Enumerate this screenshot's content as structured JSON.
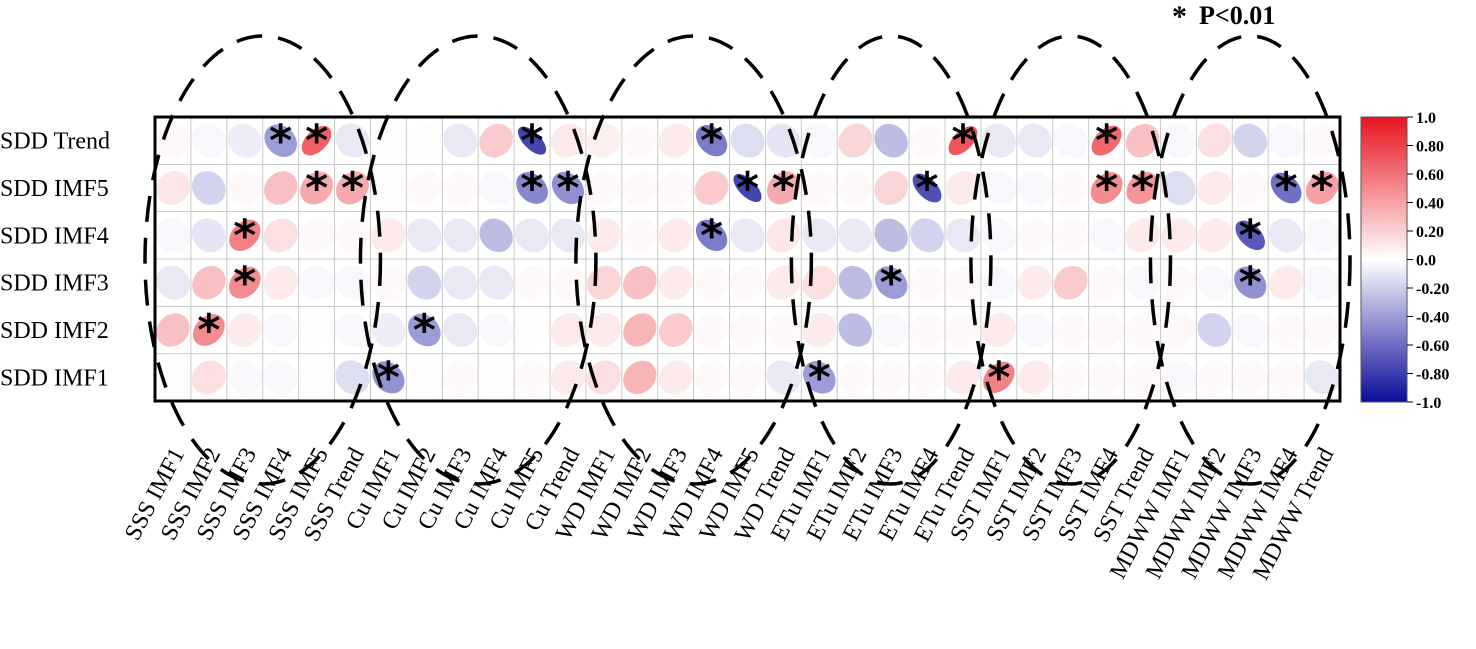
{
  "legend_note": {
    "symbol": "*",
    "text": "P<0.01"
  },
  "chart_data": {
    "type": "heatmap",
    "glyph": "ellipse",
    "rows": [
      "SDD Trend",
      "SDD IMF5",
      "SDD IMF4",
      "SDD IMF3",
      "SDD IMF2",
      "SDD IMF1"
    ],
    "columns": [
      "SSS IMF1",
      "SSS IMF2",
      "SSS IMF3",
      "SSS IMF4",
      "SSS IMF5",
      "SSS Trend",
      "Cu IMF1",
      "Cu IMF2",
      "Cu IMF3",
      "Cu IMF4",
      "Cu IMF5",
      "Cu Trend",
      "WD IMF1",
      "WD IMF2",
      "WD IMF3",
      "WD IMF4",
      "WD IMF5",
      "WD Trend",
      "ETu IMF1",
      "ETu IMF2",
      "ETu IMF3",
      "ETu IMF4",
      "ETu Trend",
      "SST IMF1",
      "SST IMF2",
      "SST IMF3",
      "SST IMF4",
      "SST Trend",
      "MDWW IMF1",
      "MDWW IMF2",
      "MDWW IMF3",
      "MDWW IMF4",
      "MDWW Trend"
    ],
    "values": [
      [
        0.05,
        -0.05,
        -0.08,
        -0.45,
        0.75,
        -0.1,
        0.02,
        0.02,
        -0.1,
        0.25,
        -0.85,
        0.1,
        0.08,
        0.05,
        0.1,
        -0.6,
        -0.15,
        -0.12,
        -0.05,
        0.2,
        -0.3,
        0.05,
        0.8,
        -0.1,
        -0.1,
        -0.05,
        0.72,
        0.3,
        -0.05,
        0.15,
        -0.2,
        -0.05,
        0.05
      ],
      [
        0.12,
        -0.2,
        0.05,
        0.3,
        0.4,
        0.4,
        0.02,
        0.05,
        0.05,
        -0.05,
        -0.55,
        -0.5,
        0.05,
        0.05,
        0.05,
        0.25,
        -0.85,
        0.4,
        0.05,
        0.05,
        0.2,
        -0.8,
        0.1,
        -0.05,
        -0.05,
        0.05,
        0.55,
        0.5,
        -0.15,
        0.1,
        0.05,
        -0.65,
        0.45
      ],
      [
        -0.05,
        -0.12,
        0.6,
        0.15,
        0.05,
        0.05,
        0.1,
        -0.1,
        -0.1,
        -0.3,
        -0.1,
        -0.1,
        0.1,
        0.05,
        0.1,
        -0.6,
        -0.1,
        0.12,
        -0.1,
        -0.1,
        -0.3,
        -0.2,
        -0.1,
        -0.05,
        0.05,
        0.05,
        -0.05,
        0.1,
        0.1,
        0.1,
        -0.75,
        -0.1,
        -0.05
      ],
      [
        -0.1,
        0.3,
        0.55,
        0.1,
        -0.05,
        -0.05,
        0.05,
        -0.2,
        -0.1,
        -0.1,
        0.05,
        0.05,
        0.2,
        0.3,
        0.1,
        0.05,
        0.05,
        0.1,
        0.15,
        -0.3,
        -0.45,
        0.05,
        0.05,
        -0.05,
        0.1,
        0.25,
        0.05,
        -0.05,
        0.05,
        -0.05,
        -0.5,
        0.1,
        -0.05
      ],
      [
        0.3,
        0.55,
        0.1,
        -0.05,
        0.02,
        -0.05,
        -0.08,
        -0.45,
        -0.1,
        -0.05,
        0.02,
        0.1,
        0.1,
        0.35,
        0.25,
        0.05,
        0.05,
        0.05,
        0.1,
        -0.3,
        -0.05,
        0.05,
        0.05,
        0.1,
        -0.05,
        0.05,
        0.05,
        0.05,
        0.05,
        -0.2,
        -0.05,
        0.05,
        0.05
      ],
      [
        0.02,
        0.15,
        -0.05,
        -0.05,
        0.02,
        -0.15,
        -0.5,
        0.02,
        0.05,
        0.02,
        0.05,
        0.1,
        0.15,
        0.35,
        0.1,
        0.05,
        0.05,
        -0.1,
        -0.45,
        0.05,
        0.05,
        0.05,
        0.1,
        0.6,
        0.1,
        0.05,
        0.05,
        0.05,
        -0.05,
        0.05,
        0.05,
        0.05,
        -0.1
      ]
    ],
    "significant": [
      [
        0,
        3
      ],
      [
        0,
        4
      ],
      [
        0,
        10
      ],
      [
        0,
        15
      ],
      [
        0,
        22
      ],
      [
        0,
        26
      ],
      [
        1,
        4
      ],
      [
        1,
        5
      ],
      [
        1,
        10
      ],
      [
        1,
        11
      ],
      [
        1,
        16
      ],
      [
        1,
        17
      ],
      [
        1,
        21
      ],
      [
        1,
        26
      ],
      [
        1,
        27
      ],
      [
        1,
        31
      ],
      [
        1,
        32
      ],
      [
        2,
        2
      ],
      [
        2,
        15
      ],
      [
        2,
        30
      ],
      [
        3,
        2
      ],
      [
        3,
        20
      ],
      [
        3,
        30
      ],
      [
        4,
        1
      ],
      [
        4,
        7
      ],
      [
        5,
        6
      ],
      [
        5,
        18
      ],
      [
        5,
        23
      ]
    ],
    "colorbar": {
      "range": [
        -1.0,
        1.0
      ],
      "tick_labels": [
        "1.0",
        "0.80",
        "0.60",
        "0.40",
        "0.20",
        "0.0",
        "-0.20",
        "-0.40",
        "-0.60",
        "-0.80",
        "-1.0"
      ],
      "colors": {
        "negative": "#0b0b9a",
        "zero": "#ffffff",
        "positive": "#e8141e"
      }
    },
    "groups": [
      "SSS",
      "Cu",
      "WD",
      "ETu",
      "SST",
      "MDWW"
    ]
  }
}
